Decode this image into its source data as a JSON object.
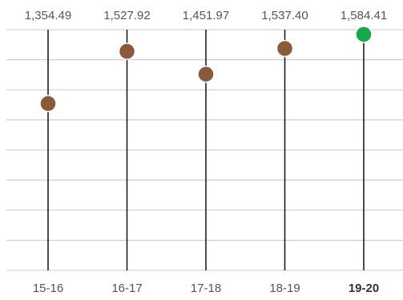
{
  "chart_data": {
    "type": "scatter",
    "categories": [
      "15-16",
      "16-17",
      "17-18",
      "18-19",
      "19-20"
    ],
    "values": [
      1354.49,
      1527.92,
      1451.97,
      1537.4,
      1584.41
    ],
    "value_labels": [
      "1,354.49",
      "1,527.92",
      "1,451.97",
      "1,537.40",
      "1,584.41"
    ],
    "highlight_category": "19-20",
    "ylim": [
      800,
      1600
    ],
    "grid": true,
    "colors": {
      "point": "#8b5a3c",
      "highlight": "#17a84b",
      "grid": "#c8c8c8",
      "stem": "#111111"
    }
  }
}
